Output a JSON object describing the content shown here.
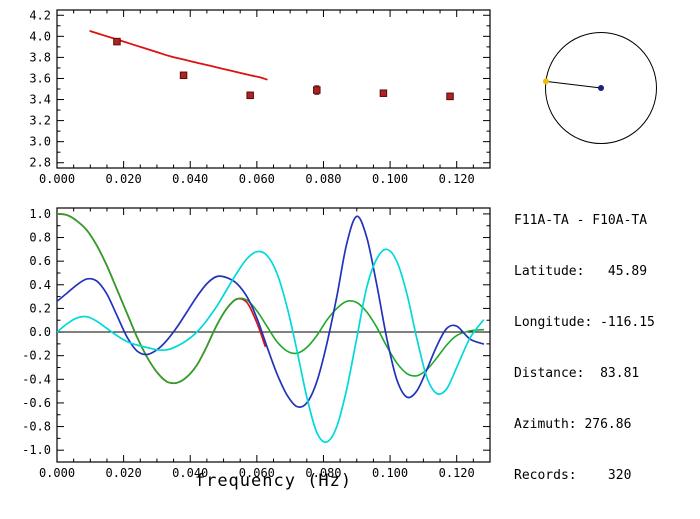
{
  "window": {
    "background": "#ffffff"
  },
  "station_info": {
    "title": "F11A-TA - F10A-TA",
    "lines": [
      "F11A-TA - F10A-TA",
      "Latitude:   45.89",
      "Longitude: -116.15",
      "Distance:  83.81",
      "Azimuth: 276.86",
      "Records:    320"
    ]
  },
  "azimuth_plot": {
    "azimuth_deg": 276.86,
    "circle_color": "#000000",
    "line_color": "#000000",
    "center_dot_color": "#1f1f7a",
    "edge_dot_color": "#f0be00"
  },
  "chart_data": [
    {
      "id": "dispersion",
      "type": "line",
      "title": "",
      "xlabel": "",
      "ylabel": "",
      "xlim": [
        0,
        0.13
      ],
      "ylim": [
        2.75,
        4.25
      ],
      "xminor": 0.005,
      "yminor": 0.1,
      "xticks": [
        {
          "v": 0.0,
          "label": "0.000"
        },
        {
          "v": 0.02,
          "label": "0.020"
        },
        {
          "v": 0.04,
          "label": "0.040"
        },
        {
          "v": 0.06,
          "label": "0.060"
        },
        {
          "v": 0.08,
          "label": "0.080"
        },
        {
          "v": 0.1,
          "label": "0.100"
        },
        {
          "v": 0.12,
          "label": "0.120"
        }
      ],
      "yticks": [
        {
          "v": 2.8,
          "label": "2.8"
        },
        {
          "v": 3.0,
          "label": "3.0"
        },
        {
          "v": 3.2,
          "label": "3.2"
        },
        {
          "v": 3.4,
          "label": "3.4"
        },
        {
          "v": 3.6,
          "label": "3.6"
        },
        {
          "v": 3.8,
          "label": "3.8"
        },
        {
          "v": 4.0,
          "label": "4.0"
        },
        {
          "v": 4.2,
          "label": "4.2"
        }
      ],
      "series": [
        {
          "name": "predicted-phase-velocity-curve",
          "type": "line",
          "color": "#dd1111",
          "width": 1.8,
          "x": [
            0.01,
            0.014,
            0.018,
            0.022,
            0.026,
            0.03,
            0.034,
            0.038,
            0.042,
            0.046,
            0.05,
            0.054,
            0.058,
            0.061,
            0.063
          ],
          "y": [
            4.05,
            4.01,
            3.97,
            3.93,
            3.89,
            3.85,
            3.81,
            3.78,
            3.75,
            3.72,
            3.69,
            3.66,
            3.63,
            3.61,
            3.59
          ]
        },
        {
          "name": "measured-phase-velocity-points",
          "type": "scatter",
          "color": "#b22222",
          "edge": "#550d0d",
          "size": 6.5,
          "x": [
            0.018,
            0.038,
            0.058,
            0.078,
            0.098,
            0.118
          ],
          "y": [
            3.95,
            3.63,
            3.44,
            3.49,
            3.46,
            3.43
          ],
          "yerr": [
            0.02,
            0.02,
            0.03,
            0.04,
            0.02,
            0.03
          ]
        }
      ]
    },
    {
      "id": "spectra",
      "type": "line",
      "title": "",
      "xlabel": "frequency (Hz)",
      "ylabel": "",
      "xlim": [
        0,
        0.13
      ],
      "ylim": [
        -1.1,
        1.05
      ],
      "zero_line": true,
      "xminor": 0.005,
      "yminor": 0.1,
      "xticks": [
        {
          "v": 0.0,
          "label": "0.000"
        },
        {
          "v": 0.02,
          "label": "0.020"
        },
        {
          "v": 0.04,
          "label": "0.040"
        },
        {
          "v": 0.06,
          "label": "0.060"
        },
        {
          "v": 0.08,
          "label": "0.080"
        },
        {
          "v": 0.1,
          "label": "0.100"
        },
        {
          "v": 0.12,
          "label": "0.120"
        }
      ],
      "yticks": [
        {
          "v": 1.0,
          "label": "1.0"
        },
        {
          "v": 0.8,
          "label": "0.8"
        },
        {
          "v": 0.6,
          "label": "0.6"
        },
        {
          "v": 0.4,
          "label": "0.4"
        },
        {
          "v": 0.2,
          "label": "0.2"
        },
        {
          "v": 0.0,
          "label": "0.0"
        },
        {
          "v": -0.2,
          "label": "-0.2"
        },
        {
          "v": -0.4,
          "label": "-0.4"
        },
        {
          "v": -0.6,
          "label": "-0.6"
        },
        {
          "v": -0.8,
          "label": "-0.8"
        },
        {
          "v": -1.0,
          "label": "-1.0"
        }
      ],
      "series": [
        {
          "name": "series-red",
          "type": "line",
          "color": "#dd1111",
          "width": 1.7,
          "x": [
            0.0,
            0.003,
            0.006,
            0.009,
            0.012,
            0.015,
            0.018,
            0.021,
            0.024,
            0.027,
            0.03,
            0.033,
            0.036,
            0.039,
            0.042,
            0.045,
            0.048,
            0.051,
            0.054,
            0.057,
            0.06,
            0.0625
          ],
          "y": [
            1.0,
            0.99,
            0.94,
            0.86,
            0.73,
            0.56,
            0.36,
            0.16,
            -0.04,
            -0.21,
            -0.34,
            -0.42,
            -0.43,
            -0.38,
            -0.28,
            -0.12,
            0.06,
            0.2,
            0.28,
            0.25,
            0.08,
            -0.12
          ]
        },
        {
          "name": "series-green",
          "type": "line",
          "color": "#1fa82a",
          "width": 1.6,
          "x": [
            0.0,
            0.003,
            0.006,
            0.009,
            0.012,
            0.015,
            0.018,
            0.021,
            0.024,
            0.027,
            0.03,
            0.033,
            0.036,
            0.039,
            0.042,
            0.045,
            0.048,
            0.051,
            0.054,
            0.057,
            0.06,
            0.063,
            0.066,
            0.069,
            0.072,
            0.075,
            0.078,
            0.081,
            0.084,
            0.087,
            0.09,
            0.093,
            0.096,
            0.099,
            0.102,
            0.105,
            0.108,
            0.111,
            0.114,
            0.117,
            0.12,
            0.124,
            0.128
          ],
          "y": [
            1.0,
            0.99,
            0.94,
            0.86,
            0.73,
            0.56,
            0.36,
            0.16,
            -0.04,
            -0.21,
            -0.34,
            -0.42,
            -0.43,
            -0.38,
            -0.28,
            -0.12,
            0.06,
            0.2,
            0.28,
            0.27,
            0.18,
            0.05,
            -0.08,
            -0.16,
            -0.18,
            -0.13,
            -0.03,
            0.1,
            0.2,
            0.26,
            0.25,
            0.17,
            0.04,
            -0.12,
            -0.26,
            -0.35,
            -0.37,
            -0.32,
            -0.22,
            -0.11,
            -0.03,
            0.01,
            0.02
          ]
        },
        {
          "name": "series-blue",
          "type": "line",
          "color": "#2233bb",
          "width": 1.7,
          "x": [
            0.0,
            0.003,
            0.006,
            0.009,
            0.012,
            0.015,
            0.018,
            0.021,
            0.024,
            0.027,
            0.03,
            0.033,
            0.036,
            0.039,
            0.042,
            0.045,
            0.048,
            0.051,
            0.054,
            0.057,
            0.06,
            0.063,
            0.066,
            0.069,
            0.072,
            0.075,
            0.078,
            0.081,
            0.084,
            0.087,
            0.09,
            0.093,
            0.096,
            0.099,
            0.102,
            0.105,
            0.108,
            0.111,
            0.114,
            0.117,
            0.12,
            0.124,
            0.128
          ],
          "y": [
            0.26,
            0.33,
            0.4,
            0.45,
            0.43,
            0.32,
            0.14,
            -0.04,
            -0.16,
            -0.19,
            -0.15,
            -0.07,
            0.04,
            0.17,
            0.3,
            0.41,
            0.47,
            0.46,
            0.41,
            0.3,
            0.12,
            -0.12,
            -0.35,
            -0.53,
            -0.63,
            -0.6,
            -0.42,
            -0.1,
            0.3,
            0.75,
            0.98,
            0.8,
            0.4,
            -0.05,
            -0.4,
            -0.55,
            -0.5,
            -0.32,
            -0.12,
            0.03,
            0.05,
            -0.06,
            -0.1
          ]
        },
        {
          "name": "series-cyan",
          "type": "line",
          "color": "#00d9d9",
          "width": 1.7,
          "x": [
            0.0,
            0.003,
            0.006,
            0.009,
            0.012,
            0.015,
            0.018,
            0.021,
            0.024,
            0.027,
            0.03,
            0.033,
            0.036,
            0.039,
            0.042,
            0.045,
            0.048,
            0.051,
            0.054,
            0.057,
            0.06,
            0.063,
            0.066,
            0.069,
            0.072,
            0.075,
            0.078,
            0.081,
            0.084,
            0.087,
            0.09,
            0.093,
            0.096,
            0.099,
            0.102,
            0.105,
            0.108,
            0.111,
            0.114,
            0.117,
            0.12,
            0.124,
            0.128
          ],
          "y": [
            0.0,
            0.07,
            0.12,
            0.13,
            0.09,
            0.03,
            -0.03,
            -0.08,
            -0.11,
            -0.13,
            -0.15,
            -0.15,
            -0.12,
            -0.07,
            0.0,
            0.1,
            0.22,
            0.36,
            0.5,
            0.62,
            0.68,
            0.65,
            0.5,
            0.22,
            -0.15,
            -0.55,
            -0.85,
            -0.93,
            -0.8,
            -0.48,
            -0.05,
            0.38,
            0.62,
            0.7,
            0.6,
            0.33,
            -0.05,
            -0.38,
            -0.52,
            -0.48,
            -0.3,
            -0.05,
            0.1
          ]
        }
      ]
    }
  ]
}
